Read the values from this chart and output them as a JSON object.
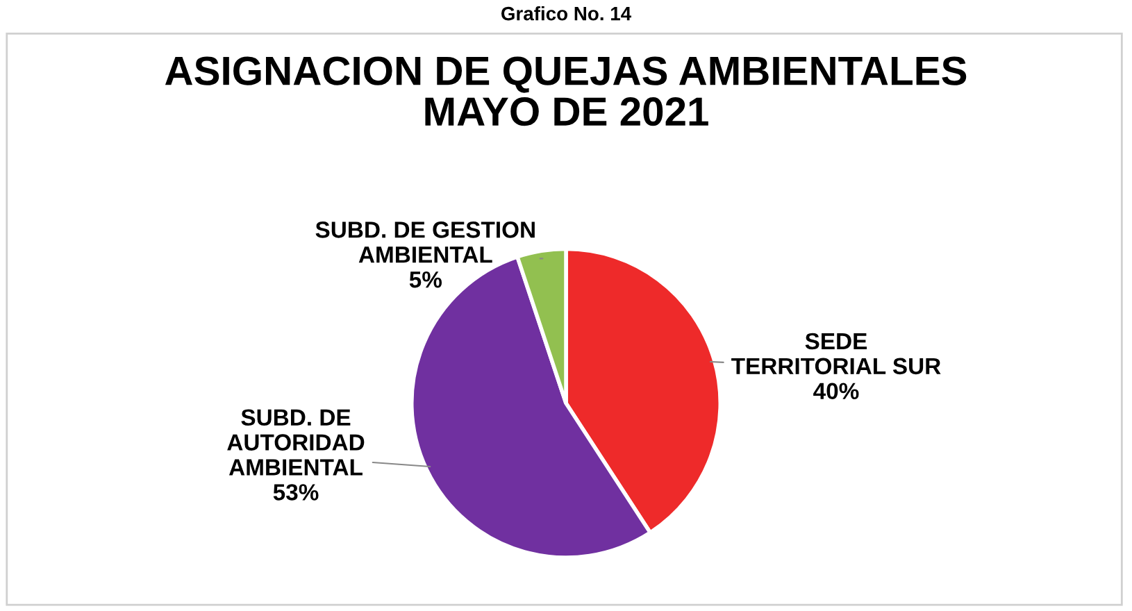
{
  "chart_data": {
    "type": "pie",
    "title": "ASIGNACION DE QUEJAS AMBIENTALES\nMAYO DE 2021",
    "annotations": [
      "Grafico No. 14"
    ],
    "categories": [
      "SEDE\nTERRITORIAL SUR",
      "SUBD. DE\nAUTORIDAD\nAMBIENTAL",
      "SUBD. DE GESTION\nAMBIENTAL"
    ],
    "values": [
      40,
      53,
      5
    ],
    "colors": [
      "#ee2a2a",
      "#7030a0",
      "#92c050"
    ],
    "value_labels": [
      "40%",
      "53%",
      "5%"
    ]
  }
}
